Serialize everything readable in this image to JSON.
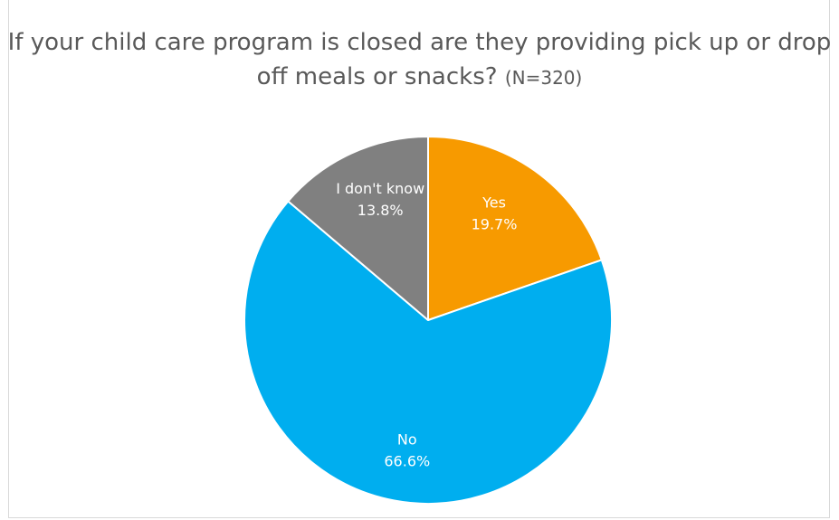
{
  "chart_data": {
    "type": "pie",
    "title": "If your child care program is closed are they providing pick up or drop off meals or snacks?",
    "title_suffix": "(N=320)",
    "legend": "none",
    "start_angle_deg": 0,
    "direction": "clockwise",
    "slices": [
      {
        "label": "Yes",
        "value": 19.7,
        "display": "19.7%",
        "color": "#F79A00"
      },
      {
        "label": "No",
        "value": 66.6,
        "display": "66.6%",
        "color": "#00AEEF"
      },
      {
        "label": "I don't know",
        "value": 13.8,
        "display": "13.8%",
        "color": "#808080"
      }
    ]
  }
}
